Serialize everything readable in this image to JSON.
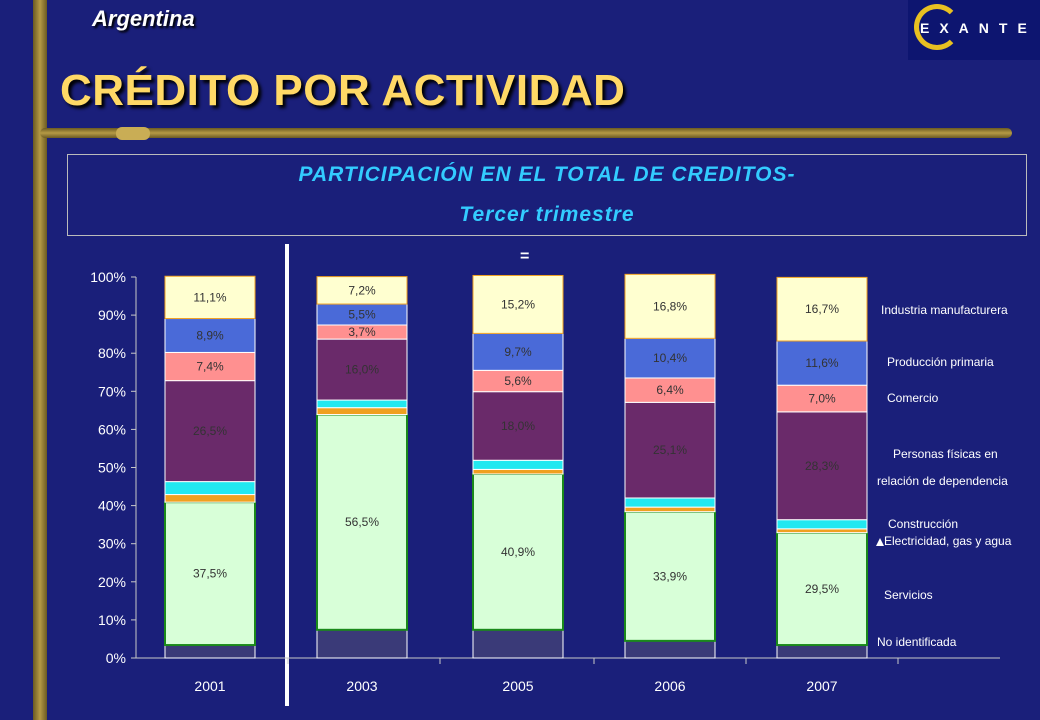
{
  "header": {
    "country": "Argentina",
    "title": "CRÉDITO POR ACTIVIDAD",
    "logo_text": "EXANTE"
  },
  "subtitle": {
    "line1": "PARTICIPACIÓN EN EL TOTAL DE CREDITOS-",
    "line2": "Tercer trimestre"
  },
  "marker_text": "=",
  "chart_data": {
    "type": "bar",
    "stacked": true,
    "categories": [
      "2001",
      "2003",
      "2005",
      "2006",
      "2007"
    ],
    "ylim": [
      0,
      100
    ],
    "yticks": [
      "0%",
      "10%",
      "20%",
      "30%",
      "40%",
      "50%",
      "60%",
      "70%",
      "80%",
      "90%",
      "100%"
    ],
    "series": [
      {
        "name": "No identificada",
        "values": [
          3.4,
          7.4,
          7.4,
          4.5,
          3.4
        ],
        "color": "#3a3a78",
        "labels": [
          "",
          "",
          "",
          "",
          ""
        ]
      },
      {
        "name": "Servicios",
        "values": [
          37.5,
          56.5,
          40.9,
          33.9,
          29.5
        ],
        "color": "#d8ffd8",
        "labels": [
          "37,5%",
          "56,5%",
          "40,9%",
          "33,9%",
          "29,5%"
        ]
      },
      {
        "name": "Electricidad, gas y agua",
        "values": [
          2.0,
          1.8,
          1.2,
          1.2,
          1.0
        ],
        "color": "#f0a020",
        "labels": [
          "",
          "",
          "",
          "",
          ""
        ]
      },
      {
        "name": "Construcción",
        "values": [
          3.4,
          2.0,
          2.4,
          2.4,
          2.4
        ],
        "color": "#22e8f0",
        "labels": [
          "",
          "",
          "",
          "",
          ""
        ]
      },
      {
        "name": "Personas físicas en relación de dependencia",
        "values": [
          26.5,
          16.0,
          18.0,
          25.1,
          28.3
        ],
        "color": "#6a2a6a",
        "labels": [
          "26,5%",
          "16,0%",
          "18,0%",
          "25,1%",
          "28,3%"
        ]
      },
      {
        "name": "Comercio",
        "values": [
          7.4,
          3.7,
          5.6,
          6.4,
          7.0
        ],
        "color": "#ff9090",
        "labels": [
          "7,4%",
          "3,7%",
          "5,6%",
          "6,4%",
          "7,0%"
        ]
      },
      {
        "name": "Producción primaria",
        "values": [
          8.9,
          5.5,
          9.7,
          10.4,
          11.6
        ],
        "color": "#4a6ad8",
        "labels": [
          "8,9%",
          "5,5%",
          "9,7%",
          "10,4%",
          "11,6%"
        ]
      },
      {
        "name": "Industria manufacturera",
        "values": [
          11.1,
          7.2,
          15.2,
          16.8,
          16.7
        ],
        "color": "#ffffd0",
        "labels": [
          "11,1%",
          "7,2%",
          "15,2%",
          "16,8%",
          "16,7%"
        ]
      }
    ],
    "legend": [
      "Industria manufacturera",
      "Producción primaria",
      "Comercio",
      "Personas físicas en",
      "relación de dependencia",
      "Construcción",
      "Electricidad, gas y agua",
      "Servicios",
      "No identificada"
    ]
  }
}
